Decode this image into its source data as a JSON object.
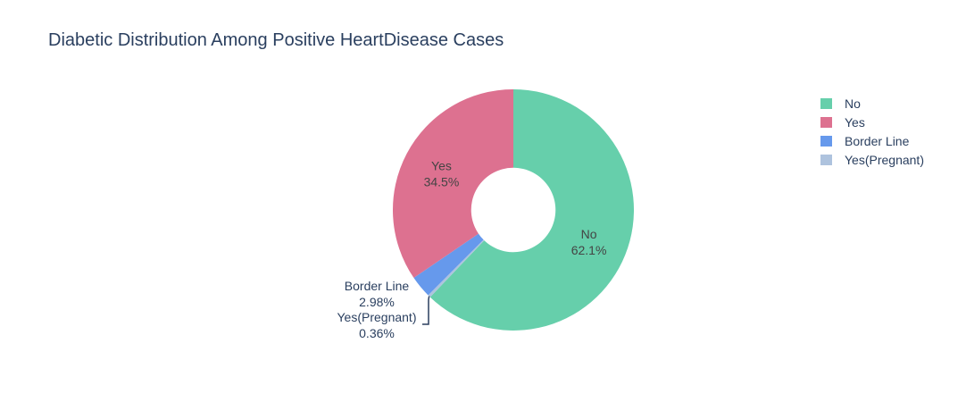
{
  "chart_data": {
    "type": "pie",
    "title": "Diabetic Distribution Among Positive HeartDisease Cases",
    "hole": 0.35,
    "start_angle_deg": 90,
    "direction": "clockwise",
    "legend_placement": "top-right",
    "slices": [
      {
        "label": "No",
        "percent": 62.1,
        "percent_label": "62.1%",
        "color": "#66cfab",
        "label_position": "inside"
      },
      {
        "label": "Yes(Pregnant)",
        "percent": 0.36,
        "percent_label": "0.36%",
        "color": "#aec3de",
        "label_position": "outside"
      },
      {
        "label": "Border Line",
        "percent": 2.98,
        "percent_label": "2.98%",
        "color": "#6699ec",
        "label_position": "outside"
      },
      {
        "label": "Yes",
        "percent": 34.5,
        "percent_label": "34.5%",
        "color": "#dd7190",
        "label_position": "inside"
      }
    ],
    "legend": [
      "No",
      "Yes",
      "Border Line",
      "Yes(Pregnant)"
    ]
  }
}
